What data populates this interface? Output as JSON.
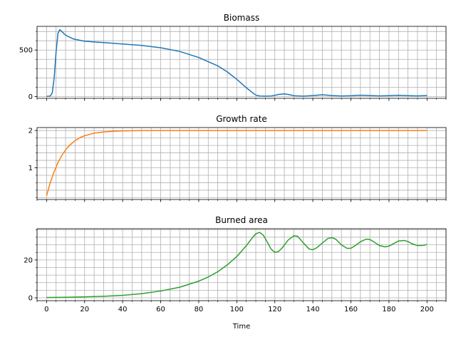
{
  "chart_data": [
    {
      "type": "line",
      "title": "Biomass",
      "color": "#1f77b4",
      "xlim": [
        -5,
        210
      ],
      "ylim": [
        -20,
        755
      ],
      "yticks": [
        0,
        500
      ],
      "yticklabels": [
        "0",
        "500"
      ],
      "xticks": [
        0,
        20,
        40,
        60,
        80,
        100,
        120,
        140,
        160,
        180,
        200
      ],
      "show_x_ticklabels": false,
      "grid": "major+minor",
      "series": [
        {
          "x": [
            0,
            2,
            3,
            4,
            5,
            6,
            7,
            8,
            10,
            14,
            20,
            30,
            40,
            50,
            60,
            70,
            80,
            90,
            95,
            100,
            105,
            108,
            110,
            112,
            115,
            118,
            120,
            122,
            125,
            128,
            130,
            135,
            140,
            145,
            150,
            155,
            160,
            165,
            170,
            175,
            180,
            185,
            190,
            195,
            200
          ],
          "y": [
            0,
            5,
            40,
            200,
            480,
            680,
            720,
            700,
            660,
            620,
            595,
            580,
            565,
            550,
            525,
            485,
            420,
            330,
            265,
            185,
            95,
            45,
            15,
            5,
            3,
            5,
            12,
            22,
            28,
            18,
            8,
            3,
            10,
            18,
            10,
            5,
            8,
            14,
            10,
            6,
            9,
            13,
            9,
            6,
            10
          ]
        }
      ]
    },
    {
      "type": "line",
      "title": "Growth rate",
      "color": "#ff7f0e",
      "xlim": [
        -5,
        210
      ],
      "ylim": [
        0.15,
        2.08
      ],
      "yticks": [
        1,
        2
      ],
      "yticklabels": [
        "1",
        "2"
      ],
      "xticks": [
        0,
        20,
        40,
        60,
        80,
        100,
        120,
        140,
        160,
        180,
        200
      ],
      "show_x_ticklabels": false,
      "grid": "major+minor",
      "series": [
        {
          "x": [
            0,
            2,
            4,
            6,
            8,
            10,
            12,
            15,
            18,
            20,
            25,
            30,
            35,
            40,
            45,
            50,
            60,
            80,
            100,
            150,
            200
          ],
          "y": [
            0.25,
            0.61,
            0.9,
            1.14,
            1.33,
            1.48,
            1.6,
            1.73,
            1.82,
            1.86,
            1.93,
            1.96,
            1.98,
            1.99,
            1.995,
            2.0,
            2.0,
            2.0,
            2.0,
            2.0,
            2.0
          ]
        }
      ]
    },
    {
      "type": "line",
      "title": "Burned area",
      "color": "#2ca02c",
      "xlim": [
        -5,
        210
      ],
      "xlabel": "Time",
      "ylim": [
        -1.5,
        36.5
      ],
      "yticks": [
        0,
        20
      ],
      "yticklabels": [
        "0",
        "20"
      ],
      "xticks": [
        0,
        20,
        40,
        60,
        80,
        100,
        120,
        140,
        160,
        180,
        200
      ],
      "xticklabels": [
        "0",
        "20",
        "40",
        "60",
        "80",
        "100",
        "120",
        "140",
        "160",
        "180",
        "200"
      ],
      "show_x_ticklabels": true,
      "grid": "major+minor",
      "series": [
        {
          "x": [
            0,
            10,
            20,
            30,
            40,
            50,
            60,
            70,
            80,
            85,
            90,
            95,
            100,
            105,
            108,
            110,
            112,
            114,
            116,
            118,
            120,
            122,
            124,
            127,
            130,
            132,
            135,
            138,
            140,
            142,
            145,
            148,
            150,
            152,
            155,
            158,
            160,
            162,
            165,
            168,
            170,
            172,
            175,
            178,
            180,
            182,
            185,
            188,
            190,
            192,
            195,
            198,
            200
          ],
          "y": [
            0.2,
            0.3,
            0.5,
            0.8,
            1.3,
            2.2,
            3.6,
            5.6,
            8.8,
            11,
            13.8,
            17.4,
            21.8,
            27.5,
            31.5,
            33.8,
            34.6,
            33,
            29.5,
            25.8,
            24,
            24.5,
            26.5,
            30.5,
            32.8,
            32.5,
            29,
            25.8,
            25.4,
            26.4,
            29,
            31.4,
            31.8,
            31,
            28,
            26.1,
            26.2,
            27.4,
            29.6,
            31,
            30.8,
            29.6,
            27.6,
            26.9,
            27.3,
            28.4,
            30,
            30.3,
            29.7,
            28.6,
            27.6,
            27.7,
            28.2
          ]
        }
      ]
    }
  ]
}
